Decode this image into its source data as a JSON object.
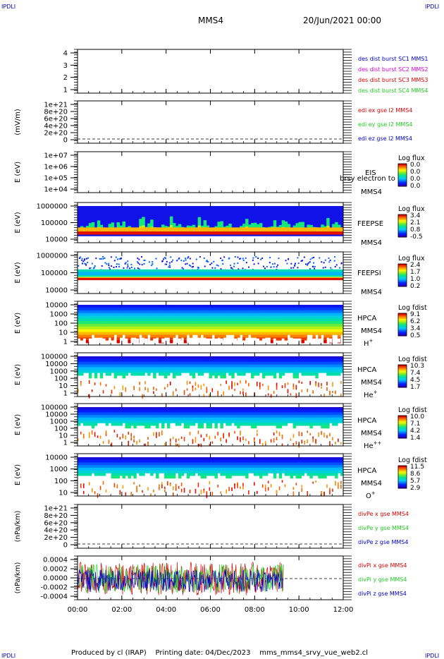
{
  "header": {
    "corner_tl": "IPDLI",
    "corner_tr": "IPDLI",
    "corner_bl": "IPDLI",
    "corner_br": "IPDLI",
    "spacecraft": "MMS4",
    "datetime": "20/Jun/2021 00:00"
  },
  "footer": {
    "text": "Produced by cl (IRAP)    Printing date: 04/Dec/2023    mms_mms4_srvy_vue_web2.cl"
  },
  "colors": {
    "frame": "#000000",
    "blue": "#0000cc",
    "red": "#dd0000",
    "green": "#22cc22",
    "magenta": "#dd00dd"
  },
  "chart_data": [
    {
      "type": "line",
      "id": "p1",
      "title": "",
      "ylabel": "",
      "yticks": [
        "4",
        "3",
        "2",
        "1"
      ],
      "legend": [
        {
          "text": "des dist burst SC1 MMS1",
          "color": "#0000cc"
        },
        {
          "text": "des dist burst SC2 MMS2",
          "color": "#dd00dd"
        },
        {
          "text": "des dist burst SC3 MMS3",
          "color": "#dd0000"
        },
        {
          "text": "des dist burst SC4 MMS4",
          "color": "#22cc22"
        }
      ]
    },
    {
      "type": "line",
      "id": "p2",
      "ylabel": "(mV/m)",
      "yticks": [
        "1e+21",
        "8e+20",
        "6e+20",
        "4e+20",
        "2e+20",
        "0"
      ],
      "zero_dashed": true,
      "legend": [
        {
          "text": "edi ex gse l2 MMS4",
          "color": "#dd0000"
        },
        {
          "text": "edi ey gse l2 MMS4",
          "color": "#22cc22"
        },
        {
          "text": "edi ez gse l2 MMS4",
          "color": "#0000cc"
        }
      ]
    },
    {
      "type": "heatmap",
      "id": "p3",
      "ylabel": "E (eV)",
      "yticks": [
        "1e+07",
        "1e+06",
        "1e+05",
        "1e+04"
      ],
      "instrument": "EIS",
      "overlay": "brsy electron to",
      "sc": "MMS4",
      "cbar_title": "Log flux",
      "cbar_ticks": [
        "0.0",
        "0.0",
        "0.0",
        "0.0"
      ]
    },
    {
      "type": "heatmap",
      "id": "p4",
      "ylabel": "E (eV)",
      "yticks": [
        "1000000",
        "100000",
        "10000"
      ],
      "instrument": "FEEPSE",
      "sc": "MMS4",
      "cbar_title": "Log flux",
      "cbar_ticks": [
        "3.4",
        "2.1",
        "0.8",
        "-0.5"
      ]
    },
    {
      "type": "heatmap",
      "id": "p5",
      "ylabel": "E (eV)",
      "yticks": [
        "1000000",
        "100000",
        "10000"
      ],
      "instrument": "FEEPSI",
      "sc": "MMS4",
      "cbar_title": "Log flux",
      "cbar_ticks": [
        "2.4",
        "1.7",
        "1.0",
        "0.2"
      ]
    },
    {
      "type": "heatmap",
      "id": "p6",
      "ylabel": "E (eV)",
      "yticks": [
        "10000",
        "1000",
        "100",
        "10",
        "1"
      ],
      "instrument": "HPCA",
      "sc": "MMS4",
      "species": "H+",
      "cbar_title": "Log fdist",
      "cbar_ticks": [
        "9.1",
        "6.2",
        "3.4",
        "0.5"
      ]
    },
    {
      "type": "heatmap",
      "id": "p7",
      "ylabel": "E (eV)",
      "yticks": [
        "100000",
        "10000",
        "1000",
        "100",
        "10",
        "1"
      ],
      "instrument": "HPCA",
      "sc": "MMS4",
      "species": "He+",
      "cbar_title": "Log fdist",
      "cbar_ticks": [
        "10.3",
        "7.4",
        "4.5",
        "1.7"
      ]
    },
    {
      "type": "heatmap",
      "id": "p8",
      "ylabel": "E (eV)",
      "yticks": [
        "100000",
        "10000",
        "1000",
        "100",
        "10",
        "1"
      ],
      "instrument": "HPCA",
      "sc": "MMS4",
      "species": "He++",
      "cbar_title": "Log fdist",
      "cbar_ticks": [
        "10.0",
        "7.1",
        "4.2",
        "1.4"
      ]
    },
    {
      "type": "heatmap",
      "id": "p9",
      "ylabel": "E (eV)",
      "yticks": [
        "10000",
        "1000",
        "100",
        "10"
      ],
      "instrument": "HPCA",
      "sc": "MMS4",
      "species": "O+",
      "cbar_title": "Log fdist",
      "cbar_ticks": [
        "11.5",
        "8.6",
        "5.7",
        "2.9"
      ]
    },
    {
      "type": "line",
      "id": "p10",
      "ylabel": "(nPa/km)",
      "yticks": [
        "1e+21",
        "8e+20",
        "6e+20",
        "4e+20",
        "2e+20",
        "0"
      ],
      "zero_dashed": true,
      "legend": [
        {
          "text": "divPe x gse MMS4",
          "color": "#dd0000"
        },
        {
          "text": "divPe y gse MMS4",
          "color": "#22cc22"
        },
        {
          "text": "divPe z gse MMS4",
          "color": "#0000cc"
        }
      ]
    },
    {
      "type": "line",
      "id": "p11",
      "ylabel": "(nPa/km)",
      "yticks": [
        "0.0004",
        "0.0002",
        "0.0000",
        "-0.0002",
        "-0.0004"
      ],
      "ylim": [
        -0.0005,
        0.0005
      ],
      "data_end_hour": 9.3,
      "zero_dashed": true,
      "legend": [
        {
          "text": "divPi x gse MMS4",
          "color": "#dd0000"
        },
        {
          "text": "divPi y gse MMS4",
          "color": "#22cc22"
        },
        {
          "text": "divPi z gse MMS4",
          "color": "#0000cc"
        }
      ]
    }
  ],
  "x_axis": {
    "ticks": [
      "00:00",
      "02:00",
      "04:00",
      "06:00",
      "08:00",
      "10:00",
      "12:00"
    ],
    "range_hours": [
      0,
      12
    ]
  }
}
